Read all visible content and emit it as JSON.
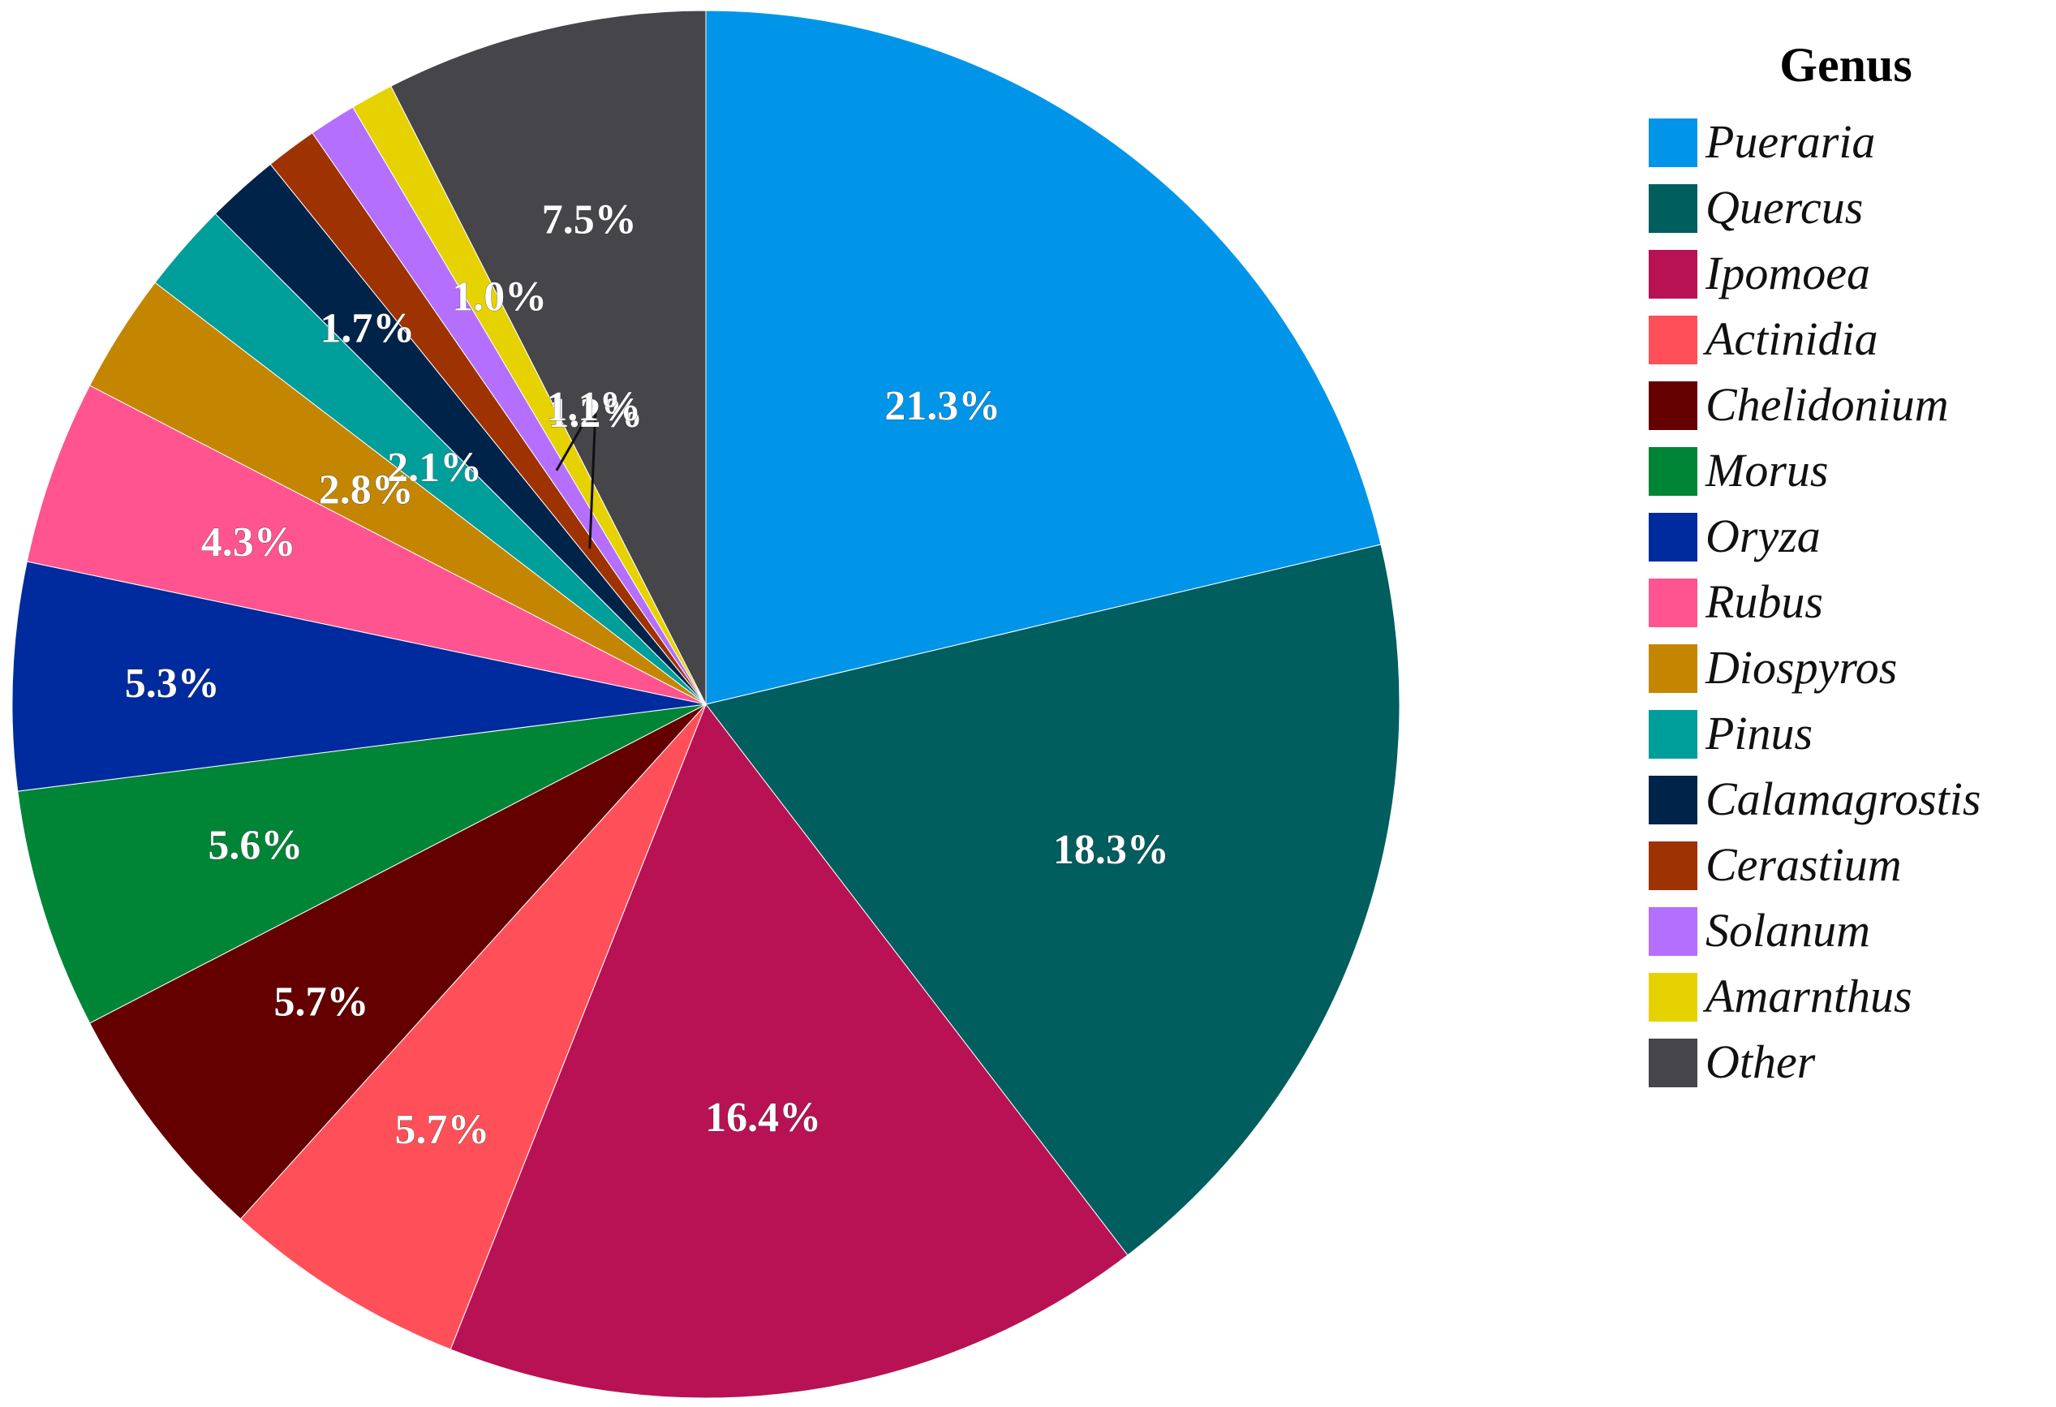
{
  "chart_data": {
    "type": "pie",
    "legend": {
      "title": "Genus",
      "placement": "right"
    },
    "start_angle_deg": 0,
    "direction": "clockwise",
    "slices": [
      {
        "name": "Pueraria",
        "value": 21.3,
        "label": "21.3%",
        "color": "#0095E8",
        "label_color": "#ffffff"
      },
      {
        "name": "Quercus",
        "value": 18.3,
        "label": "18.3%",
        "color": "#005E5E",
        "label_color": "#ffffff"
      },
      {
        "name": "Ipomoea",
        "value": 16.4,
        "label": "16.4%",
        "color": "#B81254",
        "label_color": "#ffffff"
      },
      {
        "name": "Actinidia",
        "value": 5.7,
        "label": "5.7%",
        "color": "#FF5059",
        "label_color": "#ffffff"
      },
      {
        "name": "Chelidonium",
        "value": 5.7,
        "label": "5.7%",
        "color": "#650000",
        "label_color": "#ffffff"
      },
      {
        "name": "Morus",
        "value": 5.6,
        "label": "5.6%",
        "color": "#008536",
        "label_color": "#ffffff"
      },
      {
        "name": "Oryza",
        "value": 5.3,
        "label": "5.3%",
        "color": "#002B9E",
        "label_color": "#ffffff"
      },
      {
        "name": "Rubus",
        "value": 4.3,
        "label": "4.3%",
        "color": "#FF548F",
        "label_color": "#ffffff"
      },
      {
        "name": "Diospyros",
        "value": 2.8,
        "label": "2.8%",
        "color": "#C48600",
        "label_color": "#ffffff"
      },
      {
        "name": "Pinus",
        "value": 2.1,
        "label": "2.1%",
        "color": "#009E9A",
        "label_color": "#ffffff"
      },
      {
        "name": "Calamagrostis",
        "value": 1.7,
        "label": "1.7%",
        "color": "#00234A",
        "label_color": "#ffffff"
      },
      {
        "name": "Cerastium",
        "value": 1.2,
        "label": "1.2%",
        "color": "#9E3200",
        "label_color": "#ffffff"
      },
      {
        "name": "Solanum",
        "value": 1.1,
        "label": "1.1%",
        "color": "#B46FFF",
        "label_color": "#ffffff"
      },
      {
        "name": "Amarnthus",
        "value": 1.0,
        "label": "1.0%",
        "color": "#E6D200",
        "label_color": "#ffffff"
      },
      {
        "name": "Other",
        "value": 7.5,
        "label": "7.5%",
        "color": "#45454A",
        "label_color": "#ffffff"
      }
    ]
  }
}
